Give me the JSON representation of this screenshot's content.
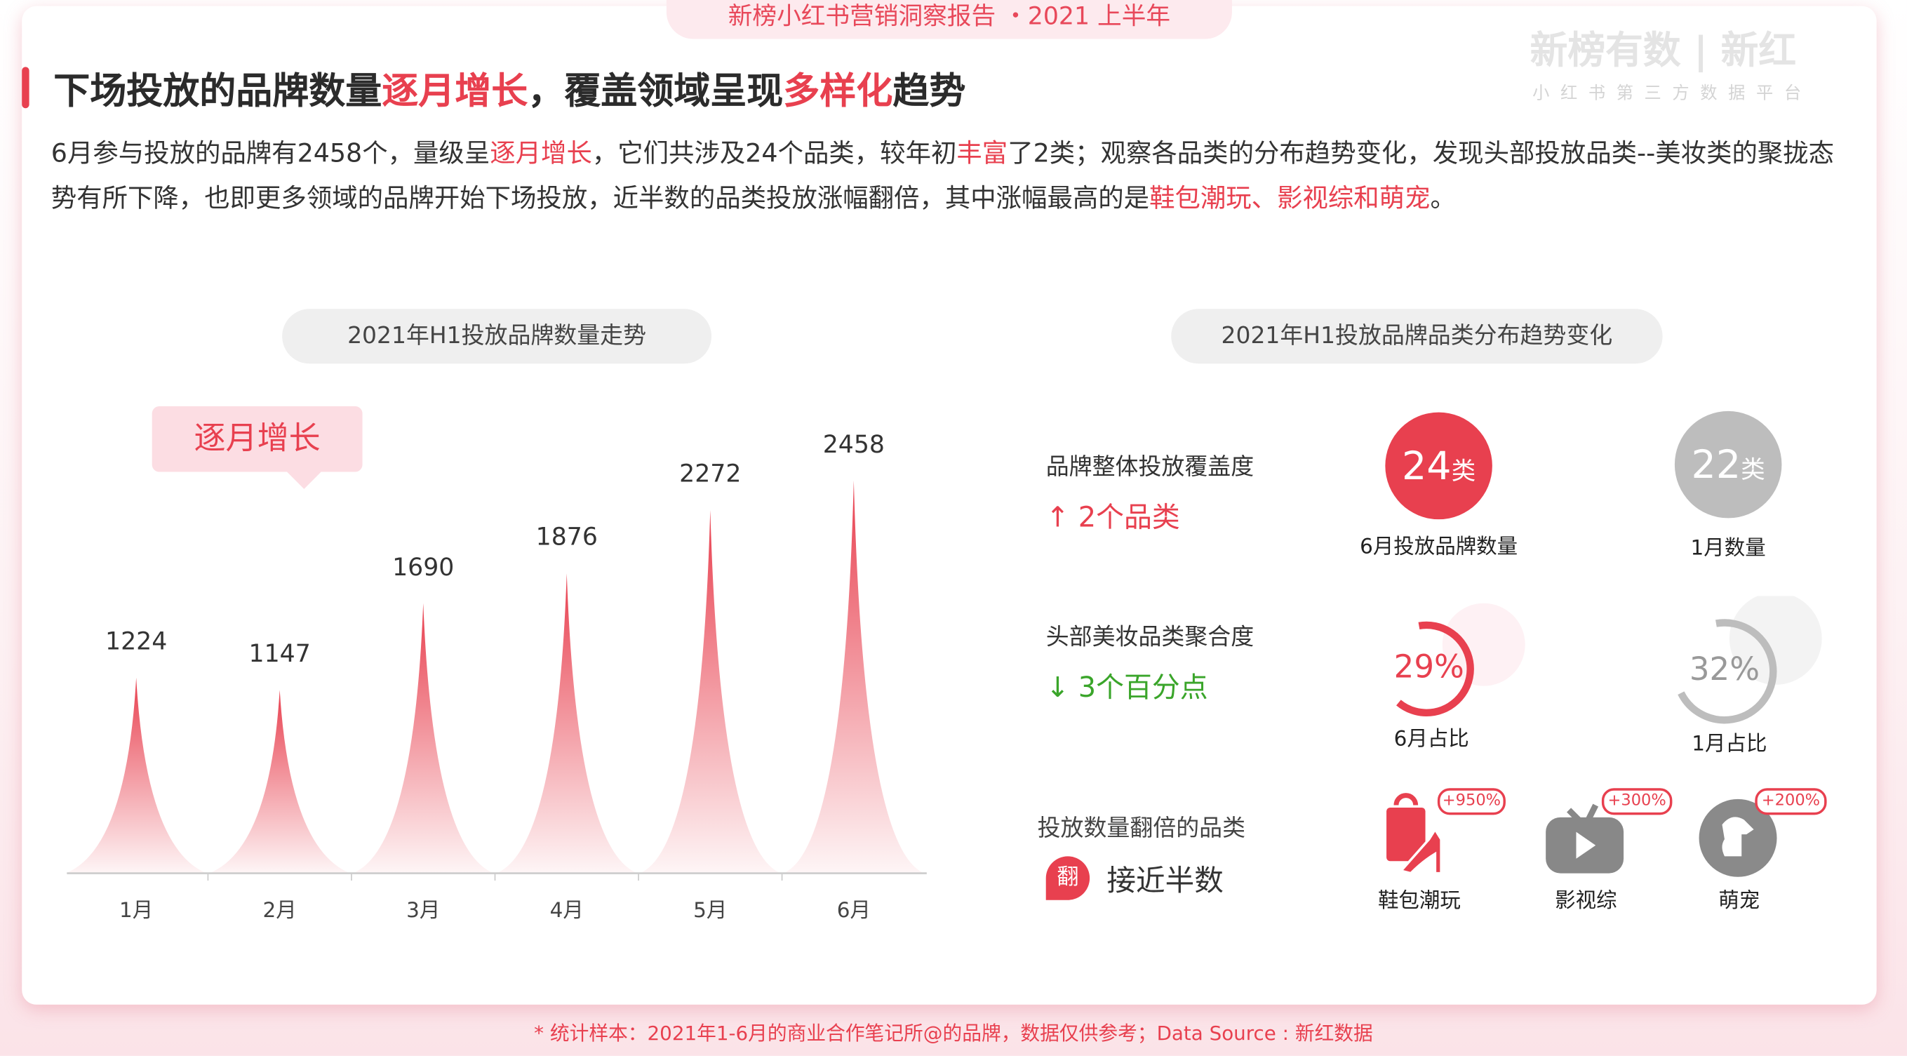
{
  "banner": "新榜小红书营销洞察报告 ・2021 上半年",
  "logo": {
    "main": "新榜有数 | 新红",
    "sub": "小红书第三方数据平台"
  },
  "title": {
    "part1": "下场投放的品牌数量",
    "hl1": "逐月增长",
    "part2": "，覆盖领域呈现",
    "hl2": "多样化",
    "part3": "趋势"
  },
  "paragraph": {
    "p1": "6月参与投放的品牌有2458个，量级呈",
    "h1": "逐月增长",
    "p2": "，它们共涉及24个品类，较年初",
    "h2": "丰富",
    "p3": "了2类；观察各品类的分布趋势变化，发现头部投放品类--美妆类的聚拢态势有所下降，也即更多领域的品牌开始下场投放，近半数的品类投放涨幅翻倍，其中涨幅最高的是",
    "h3": "鞋包潮玩、影视综和萌宠",
    "p4": "。"
  },
  "left_panel": {
    "title": "2021年H1投放品牌数量走势",
    "tag": "逐月增长"
  },
  "chart_data": {
    "type": "bar",
    "categories": [
      "1月",
      "2月",
      "3月",
      "4月",
      "5月",
      "6月"
    ],
    "values": [
      1224,
      1147,
      1690,
      1876,
      2272,
      2458
    ],
    "title": "2021年H1投放品牌数量走势",
    "ylim": [
      0,
      2458
    ],
    "grid": false,
    "accent": "#e8404f"
  },
  "right_panel": {
    "title": "2021年H1投放品牌品类分布趋势变化",
    "coverage": {
      "label": "品牌整体投放覆盖度",
      "change": "↑ 2个品类",
      "june_value": "24",
      "june_unit": "类",
      "june_label": "6月投放品牌数量",
      "jan_value": "22",
      "jan_unit": "类",
      "jan_label": "1月数量"
    },
    "beauty": {
      "label": "头部美妆品类聚合度",
      "change": "↓ 3个百分点",
      "june_pct": "29%",
      "june_fraction": 0.29,
      "june_label": "6月占比",
      "jan_pct": "32%",
      "jan_fraction": 0.32,
      "jan_label": "1月占比"
    },
    "doubled": {
      "label": "投放数量翻倍的品类",
      "icon_char": "翻",
      "summary": "接近半数",
      "items": [
        {
          "name": "鞋包潮玩",
          "growth": "+950%",
          "icon": "bag-shoe-icon"
        },
        {
          "name": "影视综",
          "growth": "+300%",
          "icon": "tv-icon"
        },
        {
          "name": "萌宠",
          "growth": "+200%",
          "icon": "dog-icon"
        }
      ]
    }
  },
  "footer": "* 统计样本：2021年1-6月的商业合作笔记所@的品牌，数据仅供参考；Data Source : 新红数据",
  "colors": {
    "accent": "#e8404f",
    "gray": "#bdbdbd",
    "green": "#3aa52a"
  }
}
